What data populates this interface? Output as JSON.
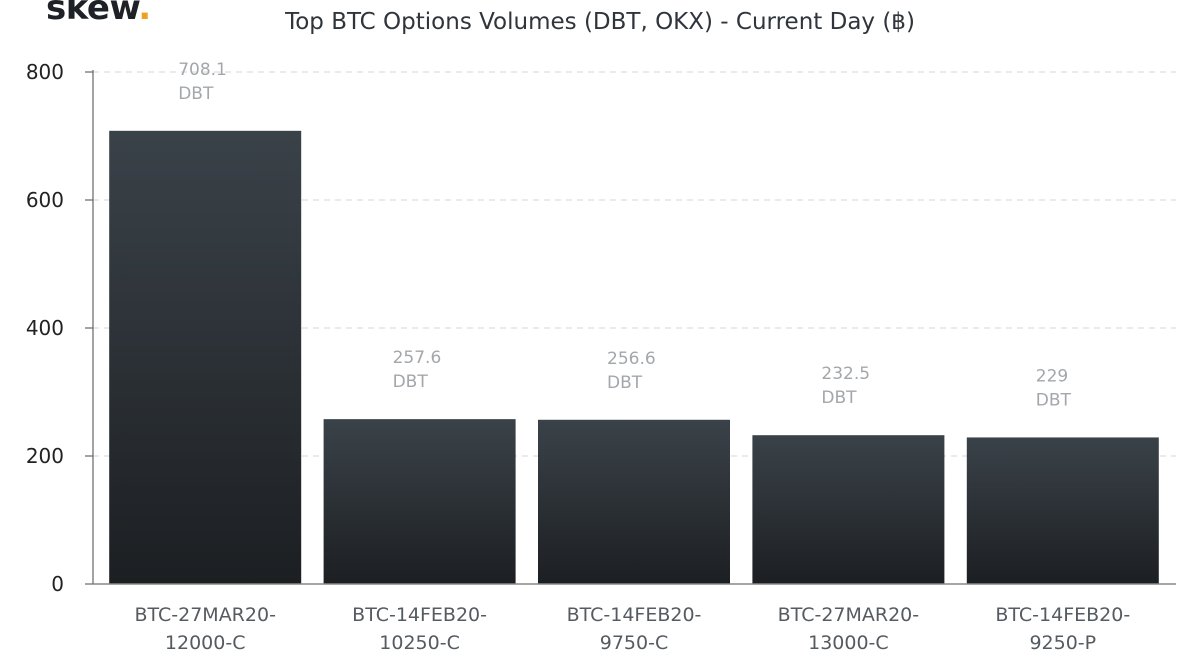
{
  "brand": {
    "logo_text": "skew",
    "logo_dot": ".",
    "dot_color": "#f0a020"
  },
  "chart_data": {
    "type": "bar",
    "title": "Top BTC Options Volumes (DBT, OKX) - Current Day (฿)",
    "categories": [
      [
        "BTC-27MAR20-",
        "12000-C"
      ],
      [
        "BTC-14FEB20-",
        "10250-C"
      ],
      [
        "BTC-14FEB20-",
        "9750-C"
      ],
      [
        "BTC-27MAR20-",
        "13000-C"
      ],
      [
        "BTC-14FEB20-",
        "9250-P"
      ]
    ],
    "values": [
      708.1,
      257.6,
      256.6,
      232.5,
      229
    ],
    "value_labels": [
      "708.1",
      "257.6",
      "256.6",
      "232.5",
      "229"
    ],
    "exchange_labels": [
      "DBT",
      "DBT",
      "DBT",
      "DBT",
      "DBT"
    ],
    "ylim": [
      0,
      800
    ],
    "yticks": [
      0,
      200,
      400,
      600,
      800
    ],
    "grid": true,
    "bar_color_top": "#3a4249",
    "bar_color_bottom": "#1c1f22"
  }
}
